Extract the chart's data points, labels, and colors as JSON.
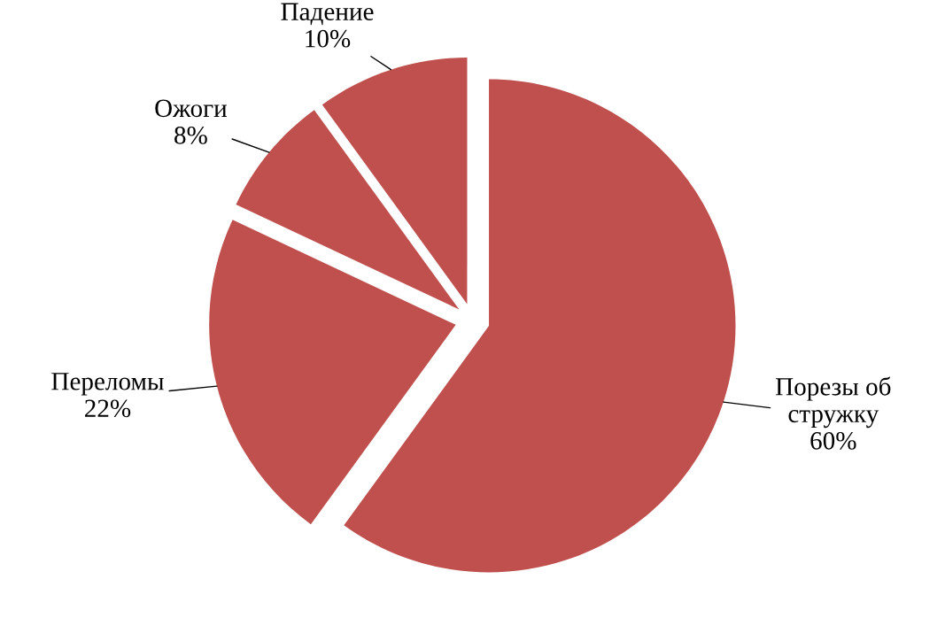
{
  "chart_data": {
    "type": "pie",
    "categories": [
      "Порезы об стружку",
      "Переломы",
      "Ожоги",
      "Падение"
    ],
    "values": [
      60,
      22,
      8,
      10
    ],
    "value_labels": [
      "60%",
      "22%",
      "8%",
      "10%"
    ],
    "colors": [
      "#c0504d",
      "#c0504d",
      "#c0504d",
      "#c0504d"
    ]
  }
}
